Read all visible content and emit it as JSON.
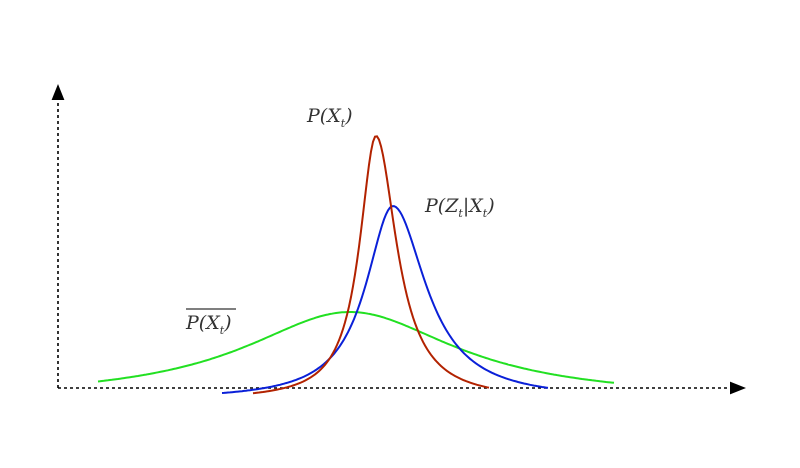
{
  "labels": {
    "prior_label": {
      "prefix": "P(X",
      "subscript": "t",
      "suffix": ")"
    },
    "likelihood_label": {
      "prefix": "P(Z",
      "subscript1": "t",
      "middle": "|X",
      "subscript2": "t",
      "suffix": ")"
    },
    "predicted_label": {
      "prefix": "P(X",
      "subscript": "t",
      "suffix": ")"
    }
  },
  "colors": {
    "prior": "#b22200",
    "likelihood": "#0a20d8",
    "predicted": "#22e022",
    "axis": "#000000"
  },
  "axes": {
    "style": "dotted",
    "x_arrow": true,
    "y_arrow": true
  }
}
